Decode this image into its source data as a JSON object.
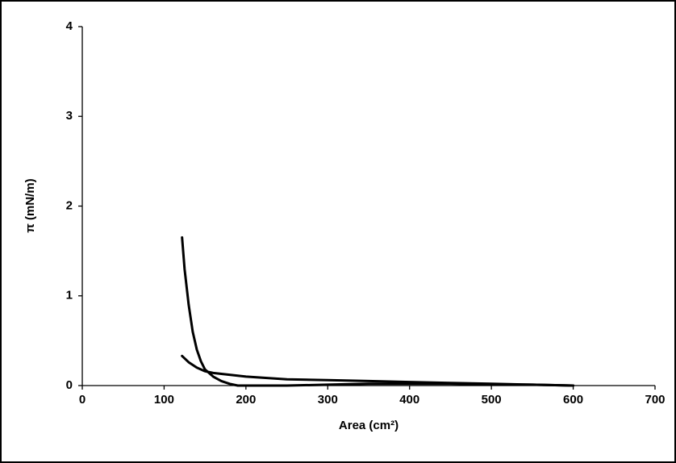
{
  "chart_data": {
    "type": "line",
    "x_label": "Area (cm²)",
    "y_label": "π (mN/m)",
    "xlim": [
      0,
      700
    ],
    "xticks": [
      0,
      100,
      200,
      300,
      400,
      500,
      600,
      700
    ],
    "ylim": [
      0,
      4
    ],
    "yticks": [
      0,
      1,
      2,
      3,
      4
    ],
    "grid": false,
    "series": [
      {
        "color": "#000000",
        "x": [
          122,
          125,
          130,
          135,
          140,
          145,
          150,
          160,
          170,
          180,
          190,
          200,
          250,
          300,
          350,
          400,
          450,
          500,
          550,
          600
        ],
        "values": [
          1.65,
          1.3,
          0.9,
          0.6,
          0.4,
          0.27,
          0.18,
          0.1,
          0.05,
          0.02,
          0.0,
          0.0,
          0.0,
          0.01,
          0.02,
          0.02,
          0.02,
          0.01,
          0.01,
          0.0
        ]
      },
      {
        "color": "#000000",
        "x": [
          122,
          130,
          140,
          150,
          160,
          180,
          200,
          250,
          300,
          350,
          400,
          450,
          500,
          550,
          600
        ],
        "values": [
          0.33,
          0.26,
          0.2,
          0.16,
          0.14,
          0.12,
          0.1,
          0.07,
          0.06,
          0.05,
          0.04,
          0.03,
          0.02,
          0.01,
          0.0
        ]
      }
    ]
  }
}
